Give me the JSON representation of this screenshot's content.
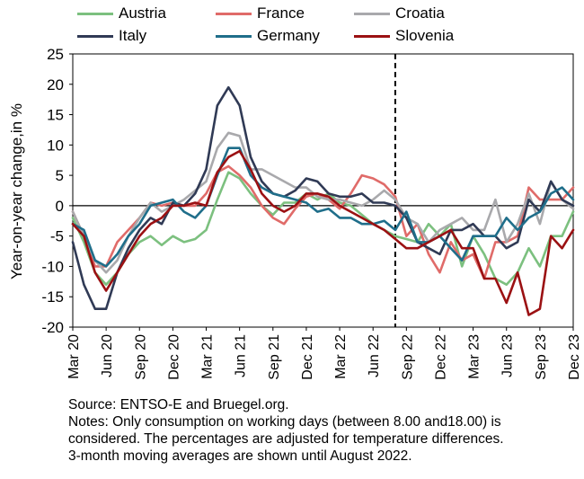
{
  "chart_data": {
    "type": "line",
    "ylabel": "Year-on-year change,in %",
    "xlabel": "",
    "ylim": [
      -20,
      25
    ],
    "yticks": [
      "25",
      "20",
      "15",
      "10",
      "5",
      "0",
      "-5",
      "-10",
      "-15",
      "-20"
    ],
    "x": [
      "Mar 20",
      "Apr 20",
      "May 20",
      "Jun 20",
      "Jul 20",
      "Aug 20",
      "Sep 20",
      "Oct 20",
      "Nov 20",
      "Dec 20",
      "Jan 21",
      "Feb 21",
      "Mar 21",
      "Apr 21",
      "May 21",
      "Jun 21",
      "Jul 21",
      "Aug 21",
      "Sep 21",
      "Oct 21",
      "Nov 21",
      "Dec 21",
      "Jan 22",
      "Feb 22",
      "Mar 22",
      "Apr 22",
      "May 22",
      "Jun 22",
      "Jul 22",
      "Aug 22",
      "Sep 22",
      "Oct 22",
      "Nov 22",
      "Dec 22",
      "Jan 23",
      "Feb 23",
      "Mar 23",
      "Apr 23",
      "May 23",
      "Jun 23",
      "Jul 23",
      "Aug 23",
      "Sep 23",
      "Oct 23",
      "Nov 23",
      "Dec 23"
    ],
    "xticks": [
      "Mar 20",
      "Jun 20",
      "Sep 20",
      "Dec 20",
      "Mar 21",
      "Jun 21",
      "Sep 21",
      "Dec 21",
      "Mar 22",
      "Jun 22",
      "Sep 22",
      "Dec 22",
      "Mar 23",
      "Jun 23",
      "Sep 23",
      "Dec 23"
    ],
    "vline_at": "Aug 22",
    "zero_line": true,
    "series": [
      {
        "name": "Austria",
        "color": "#7cc07f",
        "values": [
          -2,
          -6,
          -11,
          -13,
          -11,
          -8,
          -6,
          -5,
          -6.5,
          -5,
          -6,
          -5.5,
          -4,
          1,
          5.5,
          4.5,
          2,
          0,
          -1.5,
          0.5,
          0.5,
          2,
          1,
          2,
          0.5,
          0,
          -1.5,
          -3,
          -4,
          -5,
          -5.5,
          -6,
          -3,
          -5,
          -3,
          -10,
          -5,
          -8,
          -12,
          -13,
          -11,
          -7,
          -10,
          -5,
          -5,
          -1
        ]
      },
      {
        "name": "France",
        "color": "#e06b69",
        "values": [
          -1,
          -5,
          -10,
          -10,
          -6,
          -4,
          -2,
          0.5,
          0,
          0.5,
          0,
          0,
          2,
          5.5,
          6.5,
          5,
          3,
          0,
          -2,
          -3,
          -0.5,
          1.5,
          2,
          1,
          -0.5,
          2,
          5,
          4.5,
          3.5,
          1.5,
          -5,
          -3,
          -8,
          -11,
          -6,
          -9,
          -8,
          -12,
          -6,
          -6,
          -5,
          3,
          1,
          1,
          1,
          3
        ]
      },
      {
        "name": "Croatia",
        "color": "#a9a9ac",
        "values": [
          -1,
          -5,
          -9,
          -11,
          -9,
          -5,
          -2,
          0.5,
          -1,
          0,
          1,
          2.5,
          4,
          9.5,
          12,
          11.5,
          6,
          6,
          5,
          4,
          3,
          3,
          1.5,
          1,
          1,
          0.5,
          0,
          1,
          2.5,
          1,
          -2,
          -3,
          -6,
          -4,
          -3,
          -2,
          -4,
          -4,
          1,
          -6,
          -3,
          2,
          -3,
          4,
          1,
          -0.5
        ]
      },
      {
        "name": "Italy",
        "color": "#303a55",
        "values": [
          -6,
          -13,
          -17,
          -17,
          -11,
          -7,
          -4,
          -2,
          -3,
          0.5,
          0,
          2,
          6,
          16.5,
          19.5,
          16.5,
          8,
          4,
          2,
          1.5,
          2.5,
          4.5,
          4,
          2,
          1.5,
          1.5,
          2,
          0.5,
          0.5,
          0,
          -2,
          -6,
          -7,
          -8,
          -4,
          -4,
          -3,
          -5,
          -5,
          -7,
          -6,
          1,
          -1,
          4,
          1,
          0
        ]
      },
      {
        "name": "Germany",
        "color": "#1f6e8a",
        "values": [
          -3,
          -4,
          -9,
          -10,
          -8,
          -5,
          -3,
          0,
          0.5,
          1,
          -1,
          -2,
          0,
          5,
          9.5,
          9.5,
          5,
          3,
          2,
          1.5,
          1,
          0.5,
          -1,
          -0.5,
          -2,
          -2,
          -3,
          -3,
          -2.5,
          -4,
          -1,
          -6,
          -6,
          -5,
          -7,
          -9,
          -5,
          -5,
          -5,
          -2,
          -4,
          -2,
          -1,
          2,
          3,
          1
        ]
      },
      {
        "name": "Slovenia",
        "color": "#9b1113",
        "values": [
          -3,
          -5,
          -11,
          -14,
          -11,
          -8,
          -5,
          -3,
          -2,
          0,
          0,
          0.5,
          0,
          5.5,
          8,
          9,
          6,
          2,
          0,
          -1,
          0,
          2,
          2,
          1.5,
          0,
          -1,
          -2,
          -3,
          -4,
          -5.5,
          -7,
          -7,
          -6,
          -5,
          -4,
          -7,
          -7,
          -12,
          -12,
          -16,
          -11,
          -18,
          -17,
          -5,
          -7,
          -4
        ]
      }
    ]
  },
  "notes": [
    "Source: ENTSO-E and Bruegel.org.",
    "Notes: Only consumption on working days (between 8.00 and18.00) is",
    "considered. The percentages are adjusted for temperature differences.",
    "3-month moving averages are shown until August 2022."
  ]
}
